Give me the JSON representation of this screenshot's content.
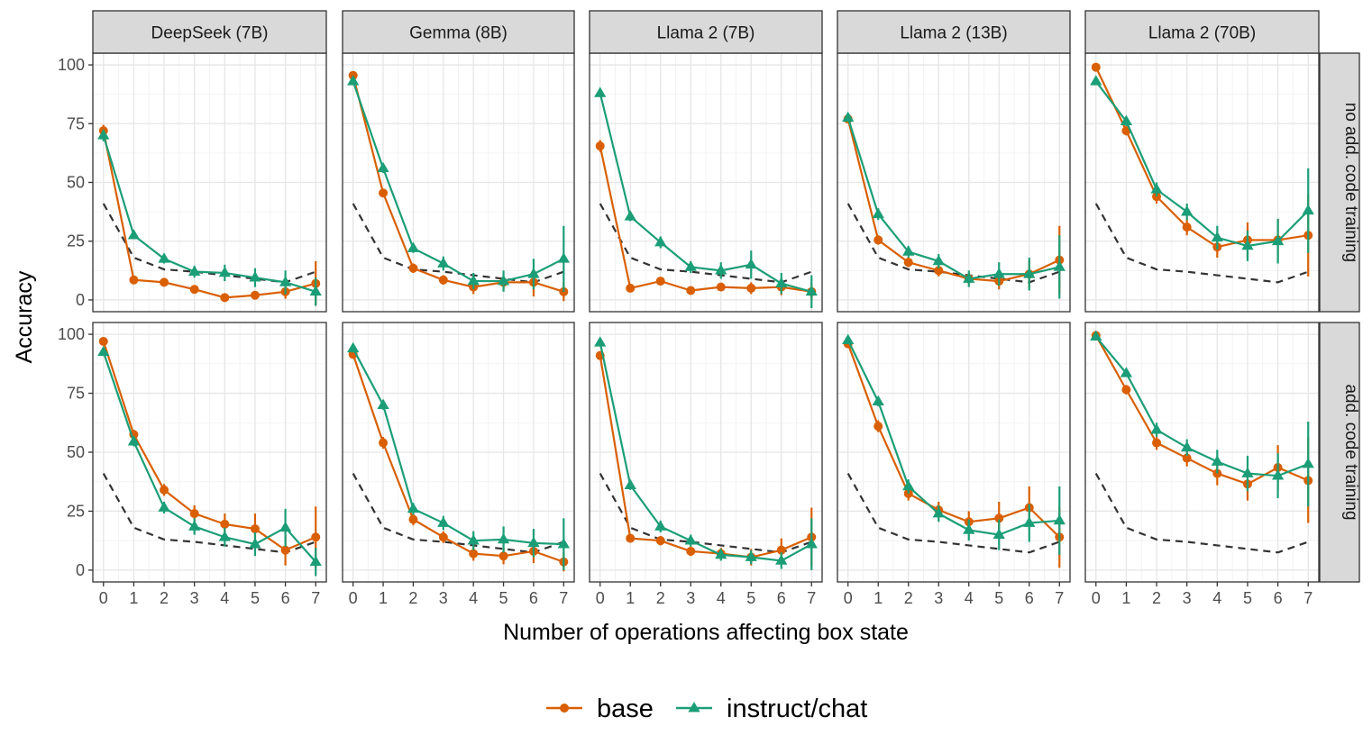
{
  "chart_data": {
    "type": "line",
    "xlabel": "Number of operations affecting box state",
    "ylabel": "Accuracy",
    "x_ticks": [
      0,
      1,
      2,
      3,
      4,
      5,
      6,
      7
    ],
    "y_ticks": [
      0,
      25,
      50,
      75,
      100
    ],
    "xlim": [
      -0.35,
      7.35
    ],
    "ylim": [
      -5,
      105
    ],
    "grid": true,
    "legend_position": "bottom",
    "columns": [
      "DeepSeek (7B)",
      "Gemma (8B)",
      "Llama 2 (7B)",
      "Llama 2 (13B)",
      "Llama 2 (70B)"
    ],
    "rows": [
      "no add. code training",
      "add. code training"
    ],
    "series_styles": [
      {
        "key": "base",
        "label": "base",
        "color": "#d95f02",
        "marker": "circle"
      },
      {
        "key": "instruct",
        "label": "instruct/chat",
        "color": "#1b9e77",
        "marker": "triangle"
      },
      {
        "key": "baseline",
        "label": "",
        "color": "#333333",
        "marker": "none",
        "dashed": true
      }
    ],
    "baseline": [
      41,
      18,
      13,
      12,
      10.5,
      9,
      7.5,
      12
    ],
    "panels": [
      {
        "row": 0,
        "col": 0,
        "base": [
          72,
          8.5,
          7.5,
          4.5,
          1,
          2,
          3.5,
          7
        ],
        "base_err": [
          2.5,
          1,
          1,
          1,
          1,
          1.5,
          3,
          9.5
        ],
        "instruct": [
          70,
          27.5,
          17.5,
          12,
          11.5,
          9.5,
          7.5,
          3.5
        ],
        "instruct_err": [
          2.5,
          1.5,
          2,
          2.5,
          3.5,
          4,
          5,
          6
        ]
      },
      {
        "row": 0,
        "col": 1,
        "base": [
          95.5,
          45.5,
          13.5,
          8.5,
          5.5,
          7.5,
          7.5,
          3.5
        ],
        "base_err": [
          1,
          1.5,
          2,
          2,
          3,
          3,
          6,
          4
        ],
        "instruct": [
          93,
          56,
          22,
          15.5,
          8,
          8,
          11,
          17.5
        ],
        "instruct_err": [
          1.5,
          2,
          2,
          3,
          3.5,
          4.5,
          6.5,
          14
        ]
      },
      {
        "row": 0,
        "col": 2,
        "base": [
          65.5,
          5,
          8,
          4,
          5.5,
          5,
          5.5,
          3.5
        ],
        "base_err": [
          2.5,
          1,
          1.5,
          1,
          1.5,
          2.5,
          3.5,
          3.5
        ],
        "instruct": [
          88,
          35.5,
          24.5,
          14,
          12.5,
          15,
          7,
          3.5
        ],
        "instruct_err": [
          1.5,
          2,
          2.5,
          2.5,
          3.5,
          6,
          4.5,
          7
        ]
      },
      {
        "row": 0,
        "col": 3,
        "base": [
          77,
          25.5,
          16,
          12.5,
          9,
          8,
          11,
          17
        ],
        "base_err": [
          1.5,
          2,
          2,
          2.5,
          2.5,
          3.5,
          6,
          14.5
        ],
        "instruct": [
          77.5,
          36.5,
          20.5,
          16.5,
          9,
          11,
          11,
          14
        ],
        "instruct_err": [
          1.5,
          2.5,
          2.5,
          3,
          3.5,
          5,
          7,
          13.5
        ]
      },
      {
        "row": 0,
        "col": 4,
        "base": [
          99,
          72,
          44,
          31,
          22.5,
          25.5,
          25.5,
          27.5
        ],
        "base_err": [
          0.5,
          2,
          3,
          3.5,
          4.5,
          7.5,
          9,
          17.5
        ],
        "instruct": [
          93,
          76,
          47,
          37.5,
          26.5,
          23,
          25,
          38
        ],
        "instruct_err": [
          1.5,
          2,
          3,
          3.5,
          5,
          6.5,
          9.5,
          18
        ]
      },
      {
        "row": 1,
        "col": 0,
        "base": [
          97,
          57.5,
          34,
          24,
          19.5,
          17.5,
          8.5,
          14
        ],
        "base_err": [
          1,
          2,
          2.5,
          3.5,
          4.5,
          6.5,
          6.5,
          13
        ],
        "instruct": [
          92.5,
          54.5,
          26.5,
          18.5,
          14,
          11,
          18,
          3.5
        ],
        "instruct_err": [
          1.5,
          2,
          2.5,
          3.5,
          4,
          5,
          8,
          6
        ]
      },
      {
        "row": 1,
        "col": 1,
        "base": [
          91.5,
          54,
          21.5,
          14,
          7,
          6,
          8,
          3.5
        ],
        "base_err": [
          1.5,
          2.5,
          2.5,
          2.5,
          3,
          3.5,
          5,
          4
        ],
        "instruct": [
          94,
          70,
          26,
          20,
          12.5,
          13,
          11.5,
          11
        ],
        "instruct_err": [
          1.5,
          2,
          2.5,
          3,
          4,
          5.5,
          6,
          11
        ]
      },
      {
        "row": 1,
        "col": 2,
        "base": [
          91,
          13.5,
          12.5,
          8,
          7,
          5.5,
          8.5,
          14
        ],
        "base_err": [
          1.5,
          1.5,
          2,
          2,
          2.5,
          3.5,
          5,
          12.5
        ],
        "instruct": [
          96.5,
          36,
          18.5,
          12.5,
          6.5,
          5.5,
          4,
          11
        ],
        "instruct_err": [
          1,
          2,
          2.5,
          2.5,
          2.5,
          3,
          3.5,
          11
        ]
      },
      {
        "row": 1,
        "col": 3,
        "base": [
          96,
          61,
          32.5,
          25.5,
          20.5,
          22,
          26.5,
          14
        ],
        "base_err": [
          1,
          2.5,
          3,
          3.5,
          4.5,
          7,
          9,
          13
        ],
        "instruct": [
          97.5,
          71.5,
          35.5,
          24,
          17,
          15,
          20,
          21
        ],
        "instruct_err": [
          1,
          2,
          3,
          3.5,
          4.5,
          6.5,
          8,
          14.5
        ]
      },
      {
        "row": 1,
        "col": 4,
        "base": [
          99.5,
          76.5,
          54,
          47.5,
          41,
          36.5,
          43.5,
          38
        ],
        "base_err": [
          0.5,
          2,
          3,
          3.5,
          5,
          7,
          9.5,
          18
        ],
        "instruct": [
          99,
          83.5,
          59.5,
          52,
          46,
          41,
          40,
          45
        ],
        "instruct_err": [
          0.5,
          1.5,
          3,
          3.5,
          5,
          7.5,
          9.5,
          18
        ]
      }
    ]
  }
}
